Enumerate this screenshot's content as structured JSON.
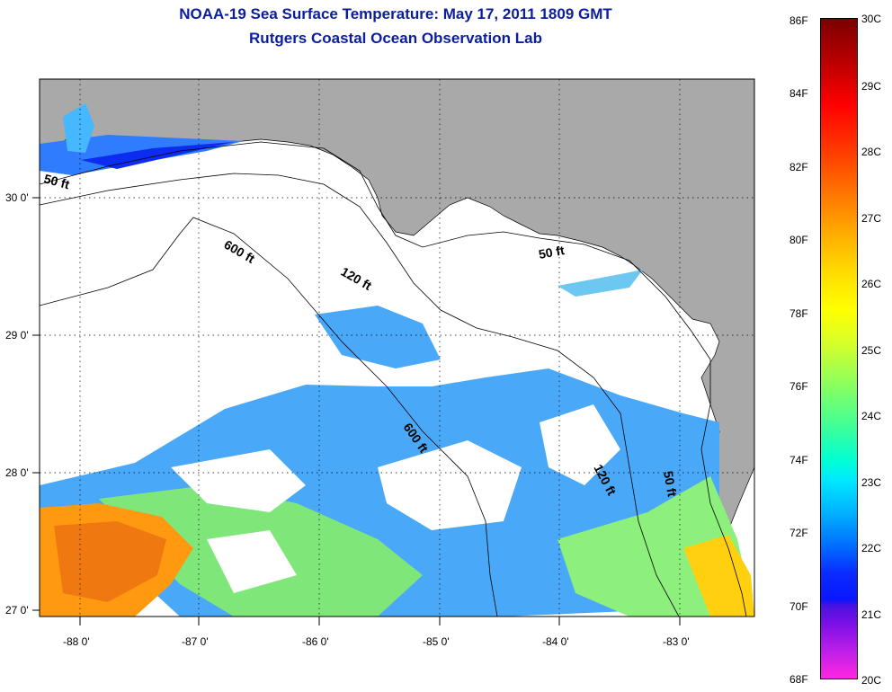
{
  "title_line1": "NOAA-19 Sea Surface Temperature:  May 17, 2011 1809 GMT",
  "title_line2": "Rutgers Coastal Ocean Observation Lab",
  "lat_labels": [
    "30 0'",
    "29 0'",
    "28 0'",
    "27 0'"
  ],
  "lon_labels": [
    "-88 0'",
    "-87 0'",
    "-86 0'",
    "-85 0'",
    "-84 0'",
    "-83 0'"
  ],
  "contour_labels": [
    "50 ft",
    "600 ft",
    "120 ft",
    "50 ft",
    "600 ft",
    "120 ft",
    "50 ft"
  ],
  "colorbar": {
    "fahrenheit": [
      "86F",
      "84F",
      "82F",
      "80F",
      "78F",
      "76F",
      "74F",
      "72F",
      "70F",
      "68F"
    ],
    "celsius": [
      "30C",
      "29C",
      "28C",
      "27C",
      "26C",
      "25C",
      "24C",
      "23C",
      "22C",
      "21C",
      "20C"
    ]
  },
  "colors": {
    "land": "#a9a9a9",
    "title": "#0b1f9e"
  }
}
